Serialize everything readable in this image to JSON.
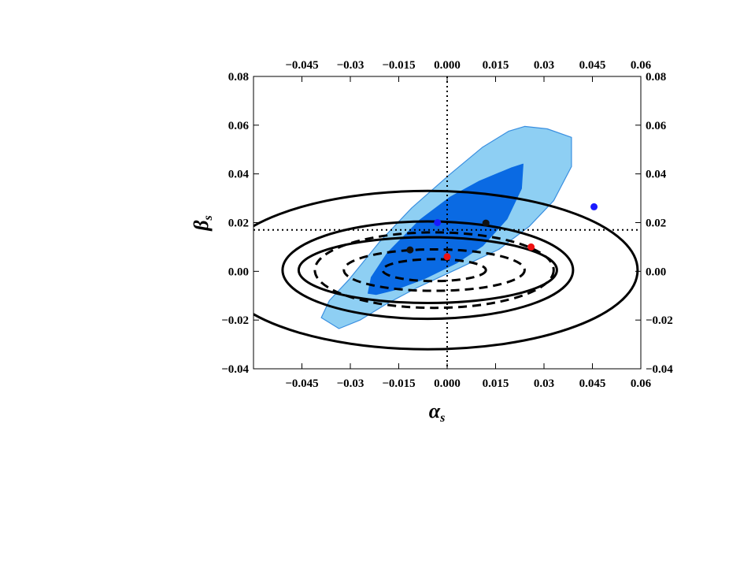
{
  "chart_data": {
    "type": "contour",
    "xlabel": "α",
    "xlabel_sub": "s",
    "ylabel": "β",
    "ylabel_sub": "s",
    "xlim": [
      -0.06,
      0.06
    ],
    "ylim": [
      -0.04,
      0.08
    ],
    "x_ticks": [
      -0.045,
      -0.03,
      -0.015,
      0.0,
      0.015,
      0.03,
      0.045,
      0.06
    ],
    "x_tick_labels": [
      "−0.045",
      "−0.03",
      "−0.015",
      "0.000",
      "0.015",
      "0.03",
      "0.045",
      "0.06"
    ],
    "y_ticks": [
      -0.04,
      -0.02,
      0.0,
      0.02,
      0.04,
      0.06,
      0.08
    ],
    "y_tick_labels": [
      "−0.04",
      "−0.02",
      "0.00",
      "0.02",
      "0.04",
      "0.06",
      "0.08"
    ],
    "reference_lines": {
      "x": 0.0,
      "y": 0.017,
      "style": "dotted"
    },
    "confidence_regions": [
      {
        "level": "outer",
        "color": "#8ecff3",
        "stroke": "#3a8fe0",
        "polygon": [
          [
            -0.0335,
            -0.0235
          ],
          [
            -0.039,
            -0.019
          ],
          [
            -0.0365,
            -0.012
          ],
          [
            -0.0305,
            -0.0035
          ],
          [
            -0.021,
            0.012
          ],
          [
            -0.011,
            0.026
          ],
          [
            0.001,
            0.04
          ],
          [
            0.011,
            0.051
          ],
          [
            0.019,
            0.0575
          ],
          [
            0.024,
            0.0595
          ],
          [
            0.031,
            0.0585
          ],
          [
            0.0385,
            0.055
          ],
          [
            0.0385,
            0.043
          ],
          [
            0.033,
            0.029
          ],
          [
            0.0255,
            0.0185
          ],
          [
            0.016,
            0.009
          ],
          [
            0.004,
            0.0015
          ],
          [
            -0.009,
            -0.0065
          ],
          [
            -0.019,
            -0.0135
          ],
          [
            -0.027,
            -0.02
          ]
        ]
      },
      {
        "level": "inner",
        "color": "#0a6ae3",
        "stroke": "#0a6ae3",
        "polygon": [
          [
            -0.0245,
            -0.009
          ],
          [
            -0.0235,
            -0.0025
          ],
          [
            -0.0185,
            0.0075
          ],
          [
            -0.0085,
            0.021
          ],
          [
            0.001,
            0.0305
          ],
          [
            0.01,
            0.037
          ],
          [
            0.02,
            0.0425
          ],
          [
            0.0235,
            0.044
          ],
          [
            0.023,
            0.034
          ],
          [
            0.0185,
            0.0215
          ],
          [
            0.011,
            0.0105
          ],
          [
            0.003,
            0.0035
          ],
          [
            -0.007,
            -0.003
          ],
          [
            -0.016,
            -0.0075
          ],
          [
            -0.022,
            -0.0095
          ]
        ]
      }
    ],
    "contours": [
      {
        "style": "solid",
        "cx": -0.006,
        "cy": 0.0005,
        "rx": 0.065,
        "ry": 0.0325,
        "rotation": 0
      },
      {
        "style": "solid",
        "cx": -0.006,
        "cy": 0.0005,
        "rx": 0.045,
        "ry": 0.02,
        "rotation": 0
      },
      {
        "style": "solid",
        "cx": -0.006,
        "cy": 0.0005,
        "rx": 0.04,
        "ry": 0.0135,
        "rotation": 0
      },
      {
        "style": "dashed",
        "cx": -0.004,
        "cy": 0.0005,
        "rx": 0.037,
        "ry": 0.0155,
        "rotation": 0
      },
      {
        "style": "dashed",
        "cx": -0.004,
        "cy": 0.0005,
        "rx": 0.028,
        "ry": 0.0085,
        "rotation": 0
      },
      {
        "style": "dashed",
        "cx": -0.004,
        "cy": 0.0005,
        "rx": 0.016,
        "ry": 0.0045,
        "rotation": 0
      }
    ],
    "points": [
      {
        "x": 0.0455,
        "y": 0.0265,
        "color": "#1a1aff"
      },
      {
        "x": -0.003,
        "y": 0.02,
        "color": "#1a1aff"
      },
      {
        "x": 0.012,
        "y": 0.0198,
        "color": "#111111"
      },
      {
        "x": -0.0115,
        "y": 0.0088,
        "color": "#111111"
      },
      {
        "x": 0.0,
        "y": 0.006,
        "color": "#ee1111"
      },
      {
        "x": 0.026,
        "y": 0.01,
        "color": "#ee1111"
      }
    ]
  }
}
